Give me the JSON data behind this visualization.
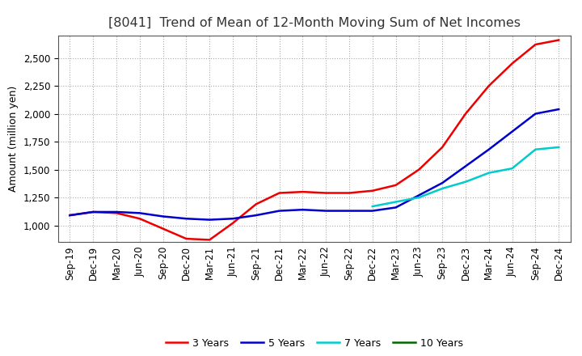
{
  "title": "[8041]  Trend of Mean of 12-Month Moving Sum of Net Incomes",
  "ylabel": "Amount (million yen)",
  "background_color": "#ffffff",
  "grid_color": "#aaaaaa",
  "x_labels": [
    "Sep-19",
    "Dec-19",
    "Mar-20",
    "Jun-20",
    "Sep-20",
    "Dec-20",
    "Mar-21",
    "Jun-21",
    "Sep-21",
    "Dec-21",
    "Mar-22",
    "Jun-22",
    "Sep-22",
    "Dec-22",
    "Mar-23",
    "Jun-23",
    "Sep-23",
    "Dec-23",
    "Mar-24",
    "Jun-24",
    "Sep-24",
    "Dec-24"
  ],
  "series": {
    "3 Years": {
      "color": "#ee0000",
      "data_x": [
        0,
        1,
        2,
        3,
        4,
        5,
        6,
        7,
        8,
        9,
        10,
        11,
        12,
        13,
        14,
        15,
        16,
        17,
        18,
        19,
        20,
        21
      ],
      "data_y": [
        1090,
        1120,
        1110,
        1060,
        970,
        880,
        870,
        1020,
        1190,
        1290,
        1300,
        1290,
        1290,
        1310,
        1360,
        1500,
        1700,
        2000,
        2250,
        2450,
        2620,
        2660
      ]
    },
    "5 Years": {
      "color": "#0000cc",
      "data_x": [
        0,
        1,
        2,
        3,
        4,
        5,
        6,
        7,
        8,
        9,
        10,
        11,
        12,
        13,
        14,
        15,
        16,
        17,
        18,
        19,
        20,
        21
      ],
      "data_y": [
        1090,
        1120,
        1120,
        1110,
        1080,
        1060,
        1050,
        1060,
        1090,
        1130,
        1140,
        1130,
        1130,
        1130,
        1160,
        1270,
        1380,
        1530,
        1680,
        1840,
        2000,
        2040
      ]
    },
    "7 Years": {
      "color": "#00cccc",
      "data_x": [
        13,
        14,
        15,
        16,
        17,
        18,
        19,
        20,
        21
      ],
      "data_y": [
        1170,
        1210,
        1250,
        1330,
        1390,
        1470,
        1510,
        1680,
        1700
      ]
    },
    "10 Years": {
      "color": "#006600",
      "data_x": [],
      "data_y": []
    }
  },
  "ylim": [
    850,
    2700
  ],
  "yticks": [
    1000,
    1250,
    1500,
    1750,
    2000,
    2250,
    2500
  ],
  "title_fontsize": 11.5,
  "ylabel_fontsize": 9,
  "tick_fontsize": 8.5,
  "legend_fontsize": 9,
  "linewidth": 1.8
}
